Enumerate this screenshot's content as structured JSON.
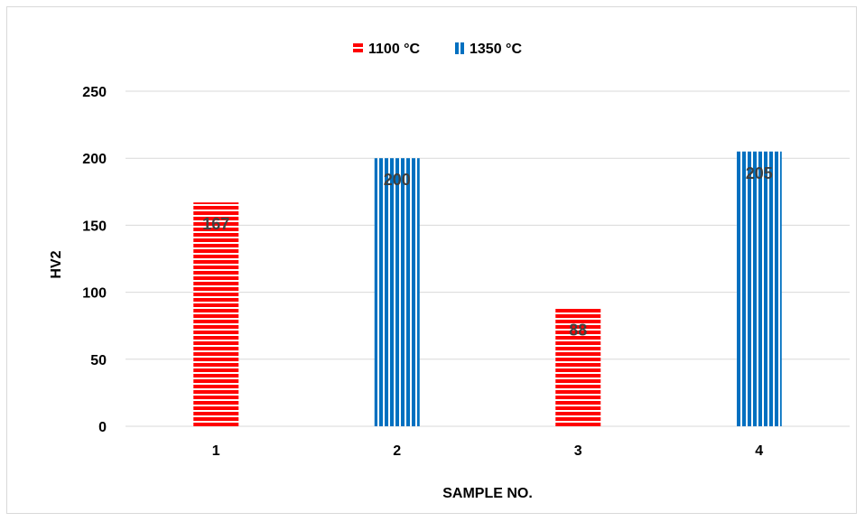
{
  "chart_data": {
    "type": "bar",
    "title": "",
    "xlabel": "SAMPLE NO.",
    "ylabel": "HV2",
    "categories": [
      "1",
      "2",
      "3",
      "4"
    ],
    "ylim": [
      0,
      250
    ],
    "yticks": [
      0,
      50,
      100,
      150,
      200,
      250
    ],
    "grid": true,
    "legend_position": "top",
    "series": [
      {
        "name": "1100 °C",
        "color": "#ff0000",
        "pattern": "horizontal-stripes",
        "values": [
          167,
          null,
          88,
          null
        ]
      },
      {
        "name": "1350 °C",
        "color": "#0070c0",
        "pattern": "vertical-stripes",
        "values": [
          null,
          200,
          null,
          205
        ]
      }
    ],
    "data_labels": [
      "167",
      "200",
      "88",
      "205"
    ]
  }
}
